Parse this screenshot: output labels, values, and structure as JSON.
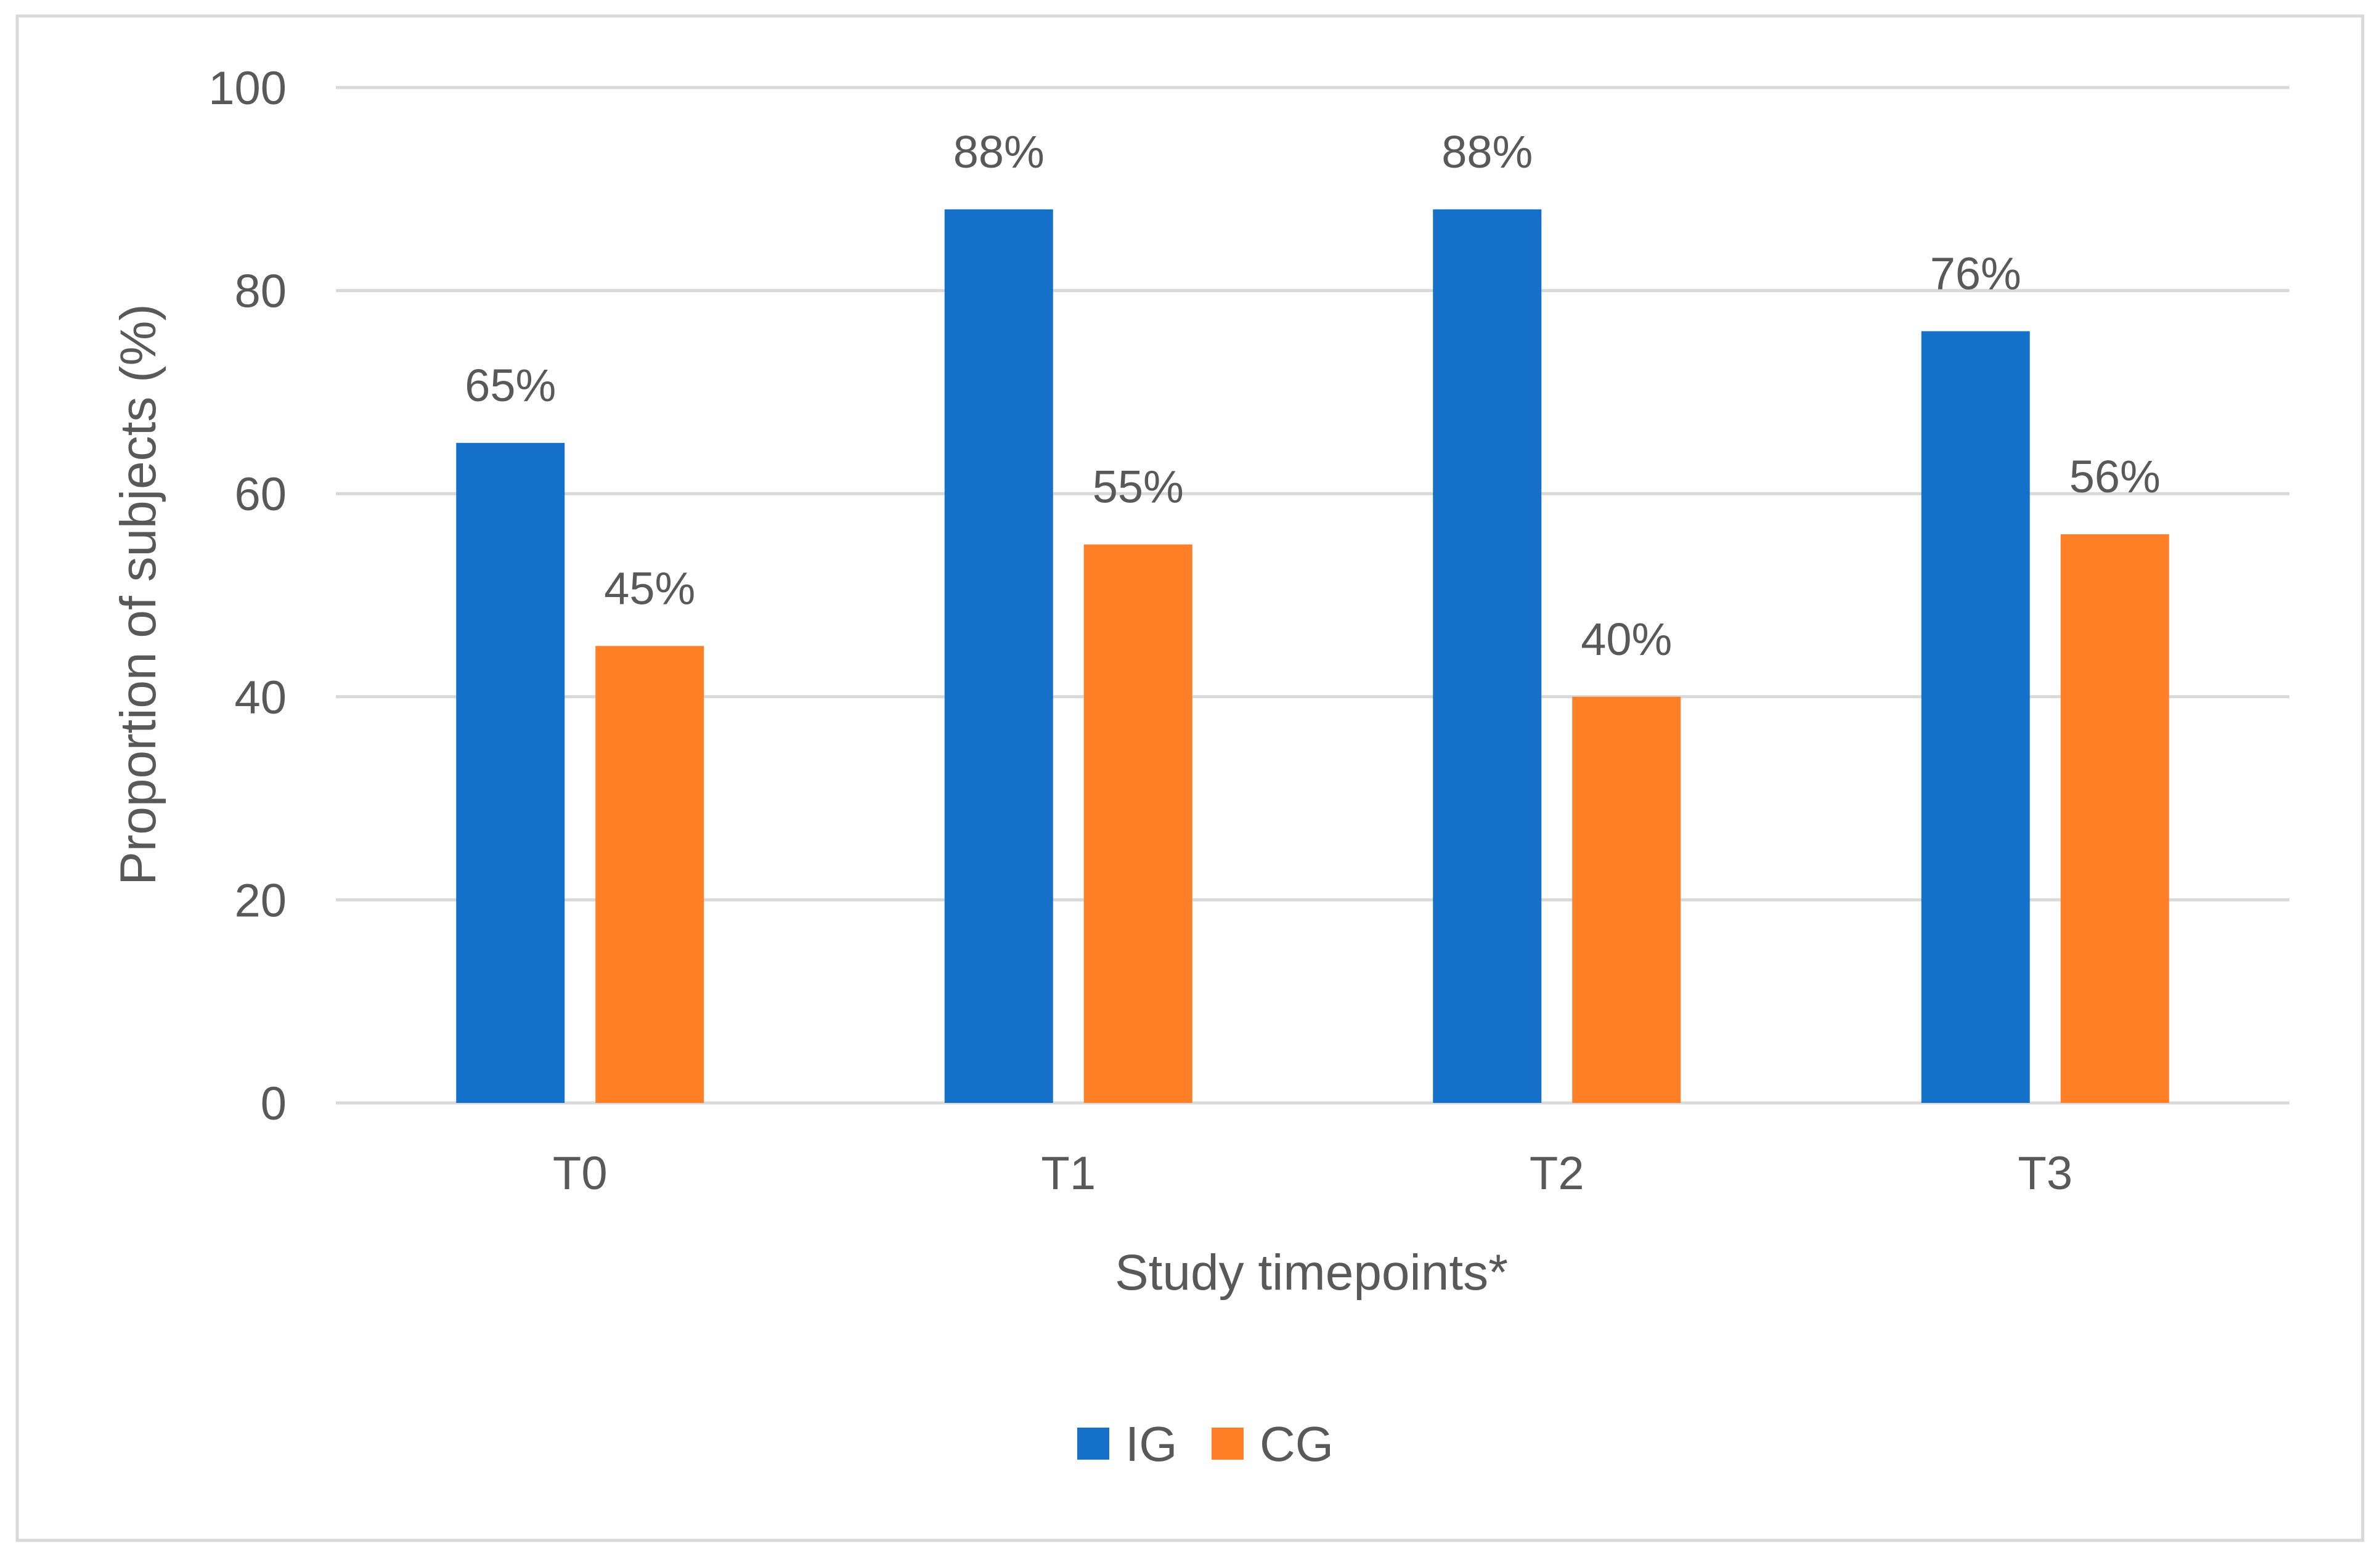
{
  "chart_data": {
    "type": "bar",
    "title": "",
    "xlabel": "Study timepoints*",
    "ylabel": "Proportion of subjects (%)",
    "ylim": [
      0,
      100
    ],
    "yticks": [
      0,
      20,
      40,
      60,
      80,
      100
    ],
    "ytick_labels": [
      "0",
      "20",
      "40",
      "60",
      "80",
      "100"
    ],
    "grid": true,
    "legend_position": "bottom-center",
    "categories": [
      "T0",
      "T1",
      "T2",
      "T3"
    ],
    "series": [
      {
        "name": "IG",
        "color": "#1470C8",
        "values": [
          65,
          88,
          88,
          76
        ],
        "labels": [
          "65%",
          "88%",
          "88%",
          "76%"
        ]
      },
      {
        "name": "CG",
        "color": "#FF7F27",
        "values": [
          45,
          55,
          40,
          56
        ],
        "labels": [
          "45%",
          "55%",
          "40%",
          "56%"
        ]
      }
    ]
  },
  "colors": {
    "grid": "#D9D9D9",
    "frame": "#D9D9D9",
    "text": "#595959"
  }
}
